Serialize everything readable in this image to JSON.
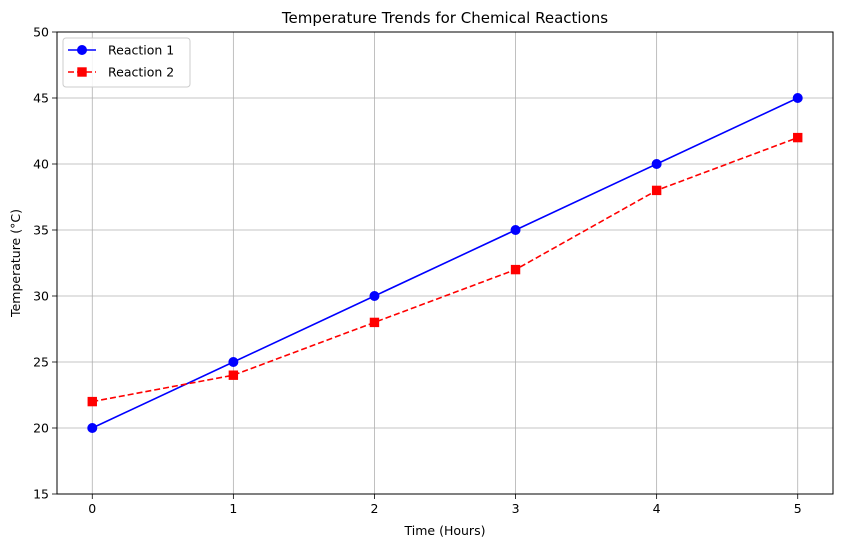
{
  "chart_data": {
    "type": "line",
    "title": "Temperature Trends for Chemical Reactions",
    "xlabel": "Time (Hours)",
    "ylabel": "Temperature (°C)",
    "x": [
      0,
      1,
      2,
      3,
      4,
      5
    ],
    "xlim": [
      -0.25,
      5.25
    ],
    "ylim": [
      15,
      50
    ],
    "x_ticks": [
      0,
      1,
      2,
      3,
      4,
      5
    ],
    "y_ticks": [
      15,
      20,
      25,
      30,
      35,
      40,
      45,
      50
    ],
    "grid": true,
    "legend_position": "top-left",
    "series": [
      {
        "name": "Reaction 1",
        "values": [
          20,
          25,
          30,
          35,
          40,
          45
        ],
        "color": "#0000ff",
        "line_style": "solid",
        "marker": "circle"
      },
      {
        "name": "Reaction 2",
        "values": [
          22,
          24,
          28,
          32,
          38,
          42
        ],
        "color": "#ff0000",
        "line_style": "dashed",
        "marker": "square"
      }
    ]
  }
}
